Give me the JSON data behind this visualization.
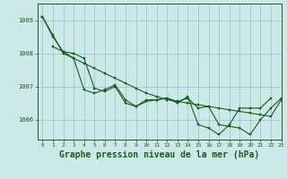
{
  "background_color": "#cce8e8",
  "grid_color": "#99cccc",
  "line_color": "#1a5c1a",
  "marker_color": "#1a5c1a",
  "title": "Graphe pression niveau de la mer (hPa)",
  "title_fontsize": 7,
  "xlim": [
    -0.5,
    23
  ],
  "ylim": [
    1005.4,
    1009.5
  ],
  "yticks": [
    1006,
    1007,
    1008,
    1009
  ],
  "xticks": [
    0,
    1,
    2,
    3,
    4,
    5,
    6,
    7,
    8,
    9,
    10,
    11,
    12,
    13,
    14,
    15,
    16,
    17,
    18,
    19,
    20,
    21,
    22,
    23
  ],
  "series": [
    {
      "x": [
        0,
        1,
        2,
        3,
        4,
        5,
        6,
        7,
        8,
        9,
        10,
        11,
        12,
        13,
        14,
        15,
        16,
        17,
        18,
        19,
        20,
        21,
        22,
        23
      ],
      "y": [
        1009.1,
        1008.55,
        1008.0,
        1007.85,
        1007.7,
        1007.55,
        1007.4,
        1007.25,
        1007.1,
        1006.95,
        1006.8,
        1006.7,
        1006.6,
        1006.55,
        1006.5,
        1006.45,
        1006.4,
        1006.35,
        1006.3,
        1006.25,
        1006.2,
        1006.15,
        1006.1,
        1006.6
      ]
    },
    {
      "x": [
        1,
        2,
        3,
        4,
        5,
        6,
        7,
        8,
        9,
        10,
        11,
        12,
        13,
        14,
        15,
        16,
        17,
        18,
        19,
        20,
        21,
        22
      ],
      "y": [
        1008.2,
        1008.05,
        1007.85,
        1006.9,
        1006.8,
        1006.9,
        1007.05,
        1006.6,
        1006.4,
        1006.55,
        1006.6,
        1006.65,
        1006.5,
        1006.7,
        1005.85,
        1005.75,
        1005.55,
        1005.85,
        1006.35,
        1006.35,
        1006.35,
        1006.65
      ]
    },
    {
      "x": [
        0,
        1,
        2,
        3,
        4,
        5,
        6,
        7,
        8,
        9,
        10,
        11,
        12,
        13,
        14,
        15,
        16,
        17,
        18,
        19,
        20,
        21,
        22,
        23
      ],
      "y": [
        1009.1,
        1008.5,
        1008.05,
        1008.0,
        1007.85,
        1006.95,
        1006.85,
        1007.0,
        1006.5,
        1006.4,
        1006.6,
        1006.6,
        1006.65,
        1006.55,
        1006.65,
        1006.35,
        1006.4,
        1005.85,
        1005.8,
        1005.75,
        1005.55,
        1006.0,
        1006.35,
        1006.65
      ]
    }
  ]
}
